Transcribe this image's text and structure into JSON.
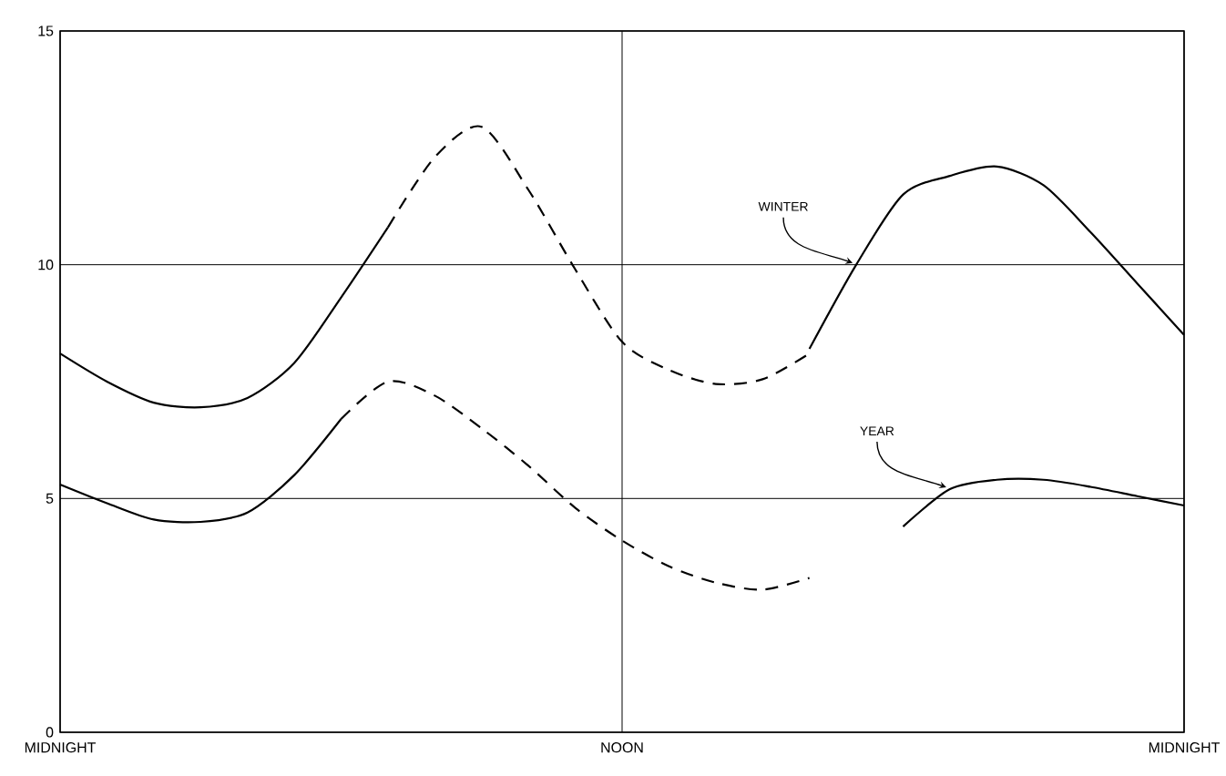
{
  "chart_data": {
    "type": "line",
    "categories": [
      "MIDNIGHT",
      null,
      null,
      null,
      null,
      null,
      null,
      null,
      null,
      null,
      null,
      null,
      "NOON",
      null,
      null,
      null,
      null,
      null,
      null,
      null,
      null,
      null,
      null,
      null,
      "MIDNIGHT"
    ],
    "ylim": [
      0,
      15
    ],
    "yticks": [
      0,
      5,
      10,
      15
    ],
    "grid": true,
    "series": [
      {
        "color": "#000000",
        "line_style": "solid",
        "values": [
          8.1,
          7.5,
          7.05,
          6.95,
          7.15,
          7.9,
          9.3,
          10.8,
          null,
          null,
          null,
          null,
          null,
          null,
          null,
          null,
          null,
          null,
          null,
          null,
          null,
          null,
          null,
          null,
          null
        ]
      },
      {
        "color": "#000000",
        "line_style": "dashed",
        "values": [
          null,
          null,
          null,
          null,
          null,
          null,
          null,
          10.8,
          12.3,
          12.95,
          11.6,
          9.9,
          8.35,
          7.75,
          7.45,
          7.55,
          8.1,
          null,
          null,
          null,
          null,
          null,
          null,
          null,
          null
        ]
      },
      {
        "name": "WINTER",
        "color": "#000000",
        "line_style": "solid",
        "values": [
          null,
          null,
          null,
          null,
          null,
          null,
          null,
          null,
          null,
          null,
          null,
          null,
          null,
          null,
          null,
          null,
          8.2,
          10.0,
          11.5,
          11.9,
          12.1,
          11.7,
          10.7,
          9.6,
          8.5
        ]
      },
      {
        "color": "#000000",
        "line_style": "solid",
        "values": [
          5.3,
          4.9,
          4.55,
          4.5,
          4.7,
          5.5,
          6.7,
          null,
          null,
          null,
          null,
          null,
          null,
          null,
          null,
          null,
          null,
          null,
          null,
          null,
          null,
          null,
          null,
          null,
          null
        ]
      },
      {
        "color": "#000000",
        "line_style": "dashed",
        "values": [
          null,
          null,
          null,
          null,
          null,
          null,
          6.7,
          7.5,
          7.2,
          6.5,
          5.7,
          4.8,
          4.1,
          3.55,
          3.2,
          3.05,
          3.3,
          null,
          null,
          null,
          null,
          null,
          null,
          null,
          null
        ]
      },
      {
        "name": "YEAR",
        "color": "#000000",
        "line_style": "solid",
        "values": [
          null,
          null,
          null,
          null,
          null,
          null,
          null,
          null,
          null,
          null,
          null,
          null,
          null,
          null,
          null,
          null,
          null,
          null,
          4.4,
          5.2,
          5.4,
          5.4,
          5.25,
          5.05,
          4.85
        ]
      }
    ]
  }
}
